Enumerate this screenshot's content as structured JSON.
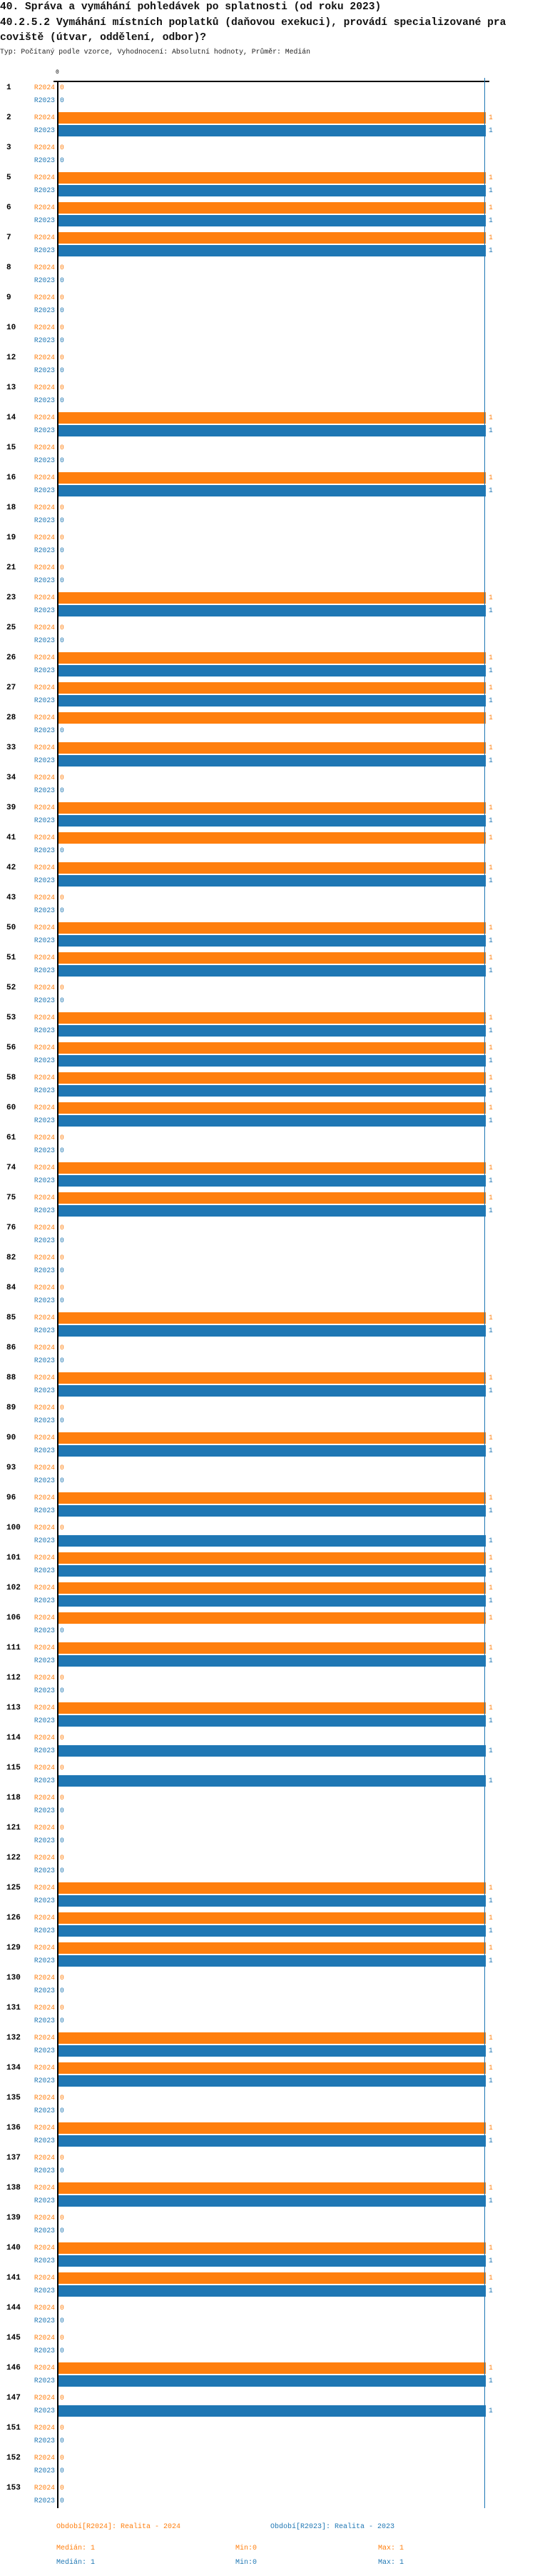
{
  "header": {
    "title_line1": "40. Správa a vymáhání pohledávek po splatnosti (od roku 2023)",
    "title_line2": "40.2.5.2 Vymáhání místních poplatků (daňovou exekuci), provádí specializované pra",
    "title_line3": "coviště (útvar, oddělení, odbor)?",
    "subtitle": "Typ: Počítaný podle vzorce, Vyhodnocení: Absolutní hodnoty, Průměr: Medián"
  },
  "chart_data": {
    "type": "bar",
    "orientation": "horizontal",
    "xlim": [
      0,
      1
    ],
    "x_tick_labels": [
      "0"
    ],
    "series": [
      {
        "key": "R2024",
        "name": "Období[R2024]: Realita - 2024",
        "color": "#ff7f0e",
        "median": "1",
        "min": "0",
        "max": "1"
      },
      {
        "key": "R2023",
        "name": "Období[R2023]: Realita - 2023",
        "color": "#1f77b4",
        "median": "1",
        "min": "0",
        "max": "1"
      }
    ],
    "median_line_value": 1,
    "categories": [
      "1",
      "2",
      "3",
      "5",
      "6",
      "7",
      "8",
      "9",
      "10",
      "12",
      "13",
      "14",
      "15",
      "16",
      "18",
      "19",
      "21",
      "23",
      "25",
      "26",
      "27",
      "28",
      "33",
      "34",
      "39",
      "41",
      "42",
      "43",
      "50",
      "51",
      "52",
      "53",
      "56",
      "58",
      "60",
      "61",
      "74",
      "75",
      "76",
      "82",
      "84",
      "85",
      "86",
      "88",
      "89",
      "90",
      "93",
      "96",
      "100",
      "101",
      "102",
      "106",
      "111",
      "112",
      "113",
      "114",
      "115",
      "118",
      "121",
      "122",
      "125",
      "126",
      "129",
      "130",
      "131",
      "132",
      "134",
      "135",
      "136",
      "137",
      "138",
      "139",
      "140",
      "141",
      "144",
      "145",
      "146",
      "147",
      "151",
      "152",
      "153"
    ],
    "values_R2024": [
      0,
      1,
      0,
      1,
      1,
      1,
      0,
      0,
      0,
      0,
      0,
      1,
      0,
      1,
      0,
      0,
      0,
      1,
      0,
      1,
      1,
      1,
      1,
      0,
      1,
      1,
      1,
      0,
      1,
      1,
      0,
      1,
      1,
      1,
      1,
      0,
      1,
      1,
      0,
      0,
      0,
      1,
      0,
      1,
      0,
      1,
      0,
      1,
      0,
      1,
      1,
      1,
      1,
      0,
      1,
      0,
      0,
      0,
      0,
      0,
      1,
      1,
      1,
      0,
      0,
      1,
      1,
      0,
      1,
      0,
      1,
      0,
      1,
      1,
      0,
      0,
      1,
      0,
      0,
      0,
      0
    ],
    "values_R2023": [
      0,
      1,
      0,
      1,
      1,
      1,
      0,
      0,
      0,
      0,
      0,
      1,
      0,
      1,
      0,
      0,
      0,
      1,
      0,
      1,
      1,
      0,
      1,
      0,
      1,
      0,
      1,
      0,
      1,
      1,
      0,
      1,
      1,
      1,
      1,
      0,
      1,
      1,
      0,
      0,
      0,
      1,
      0,
      1,
      0,
      1,
      0,
      1,
      1,
      1,
      1,
      0,
      1,
      0,
      1,
      1,
      1,
      0,
      0,
      0,
      1,
      1,
      1,
      0,
      0,
      1,
      1,
      0,
      1,
      0,
      1,
      0,
      1,
      1,
      0,
      0,
      1,
      1,
      0,
      0,
      0
    ]
  },
  "legend": {
    "median_label": "Medián:",
    "min_label": "Min:",
    "max_label": "Max:"
  }
}
